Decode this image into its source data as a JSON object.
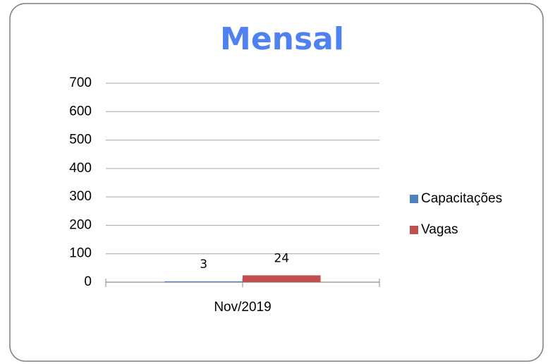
{
  "chart_data": {
    "type": "bar",
    "title": "Mensal",
    "categories": [
      "Nov/2019"
    ],
    "series": [
      {
        "name": "Capacitações",
        "color": "#4f81bd",
        "values": [
          3
        ]
      },
      {
        "name": "Vagas",
        "color": "#c0504d",
        "values": [
          24
        ]
      }
    ],
    "ylim": [
      0,
      700
    ],
    "yticks": [
      0,
      100,
      200,
      300,
      400,
      500,
      600,
      700
    ],
    "grid": true,
    "legend": "right"
  }
}
